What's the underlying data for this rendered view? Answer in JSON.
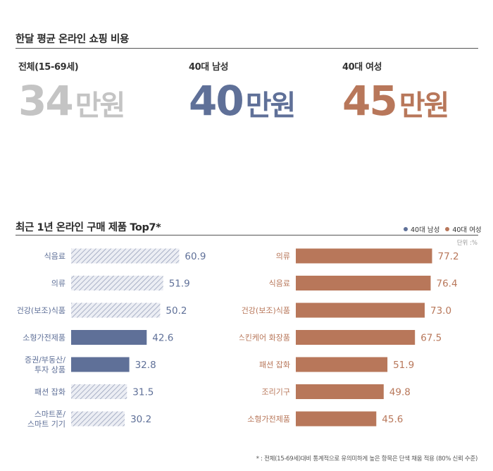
{
  "section1": {
    "title": "한달 평균 온라인 쇼핑 비용",
    "stats": [
      {
        "label": "전체(15-69세)",
        "number": "34",
        "unit": "만원",
        "color": "#c4c4c4"
      },
      {
        "label": "40대 남성",
        "number": "40",
        "unit": "만원",
        "color": "#5f7098"
      },
      {
        "label": "40대 여성",
        "number": "45",
        "unit": "만원",
        "color": "#b8775a"
      }
    ]
  },
  "section2": {
    "title": "최근 1년 온라인 구매 제품 Top7*",
    "legend": [
      {
        "label": "40대 남성",
        "color": "#5f7098"
      },
      {
        "label": "40대 여성",
        "color": "#b8775a"
      }
    ],
    "unit_note": "단위 :%"
  },
  "chart_data": [
    {
      "type": "bar",
      "orientation": "horizontal",
      "series_name": "40대 남성",
      "categories": [
        [
          "식음료"
        ],
        [
          "의류"
        ],
        [
          "건강(보조)식품"
        ],
        [
          "소형가전제품"
        ],
        [
          "증권/부동산/",
          "투자 상품"
        ],
        [
          "패션 잡화"
        ],
        [
          "스마트폰/",
          "스마트 기기"
        ]
      ],
      "values": [
        60.9,
        51.9,
        50.2,
        42.6,
        32.8,
        31.5,
        30.2
      ],
      "value_labels": [
        "60.9",
        "51.9",
        "50.2",
        "42.6",
        "32.8",
        "31.5",
        "30.2"
      ],
      "highlighted": [
        false,
        false,
        false,
        true,
        true,
        false,
        false
      ],
      "color": "#5f7098",
      "xlim": [
        0,
        80
      ]
    },
    {
      "type": "bar",
      "orientation": "horizontal",
      "series_name": "40대 여성",
      "categories": [
        [
          "의류"
        ],
        [
          "식음료"
        ],
        [
          "건강(보조)식품"
        ],
        [
          "스킨케어 화장품"
        ],
        [
          "패션 잡화"
        ],
        [
          "조리기구"
        ],
        [
          "소형가전제품"
        ]
      ],
      "values": [
        77.2,
        76.4,
        73.0,
        67.5,
        51.9,
        49.8,
        45.6
      ],
      "value_labels": [
        "77.2",
        "76.4",
        "73.0",
        "67.5",
        "51.9",
        "49.8",
        "45.6"
      ],
      "highlighted": [
        true,
        true,
        true,
        true,
        true,
        true,
        true
      ],
      "color": "#b8775a",
      "xlim": [
        0,
        80
      ]
    }
  ],
  "footnote": "* : 전체(15-69세)대비 통계적으로 유의미하게 높은 항목은 단색 채움 적용 (80% 신뢰 수준)"
}
